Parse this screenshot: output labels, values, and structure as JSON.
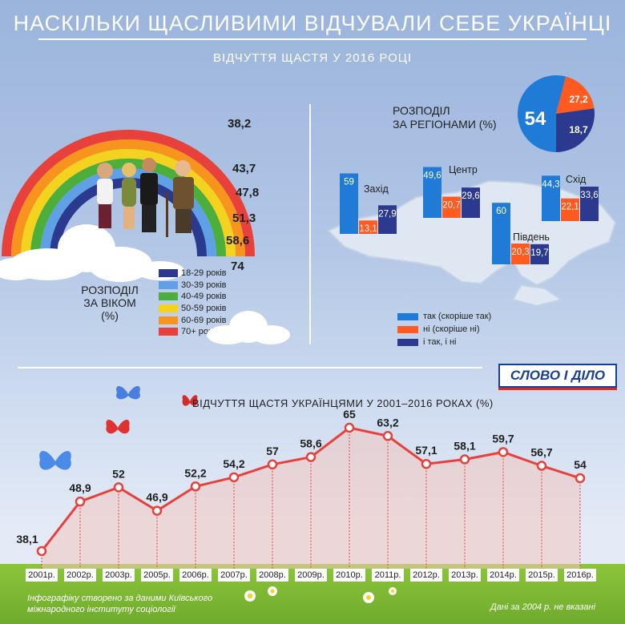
{
  "header": {
    "title": "НАСКІЛЬКИ ЩАСЛИВИМИ ВІДЧУВАЛИ СЕБЕ УКРАЇНЦІ",
    "subtitle": "ВІДЧУТТЯ ЩАСТЯ У 2016 РОЦІ"
  },
  "age_section": {
    "title_line1": "РОЗПОДІЛ",
    "title_line2": "ЗА ВІКОМ",
    "title_line3": "(%)"
  },
  "region_section": {
    "title_line1": "РОЗПОДІЛ",
    "title_line2": "ЗА РЕГІОНАМИ (%)",
    "legend": [
      "так (скоріше так)",
      "ні (скоріше ні)",
      "і так, і ні"
    ]
  },
  "logo": "СЛОВО І ДІЛО",
  "timeline_title": "ВІДЧУТТЯ ЩАСТЯ УКРАЇНЦЯМИ  У 2001–2016 РОКАХ (%)",
  "footer": {
    "credit_line1": "Інфографіку створено за даними Київського",
    "credit_line2": "міжнародного інституту соціології",
    "note": "Дані за 2004 р. не вказані"
  },
  "colors": {
    "yes": "#1f7bd6",
    "no": "#ff5a1f",
    "mixed": "#2b3a8f",
    "line": "#e8403a"
  },
  "chart_data": [
    {
      "type": "bar",
      "name": "age",
      "categories": [
        "18-29 років",
        "30-39 років",
        "40-49 років",
        "50-59 років",
        "60-69 років",
        "70+ років"
      ],
      "values": [
        74,
        58.6,
        51.3,
        47.8,
        43.7,
        38.2
      ],
      "labels": [
        "74",
        "58,6",
        "51,3",
        "47,8",
        "43,7",
        "38,2"
      ],
      "colors": [
        "#2b3a8f",
        "#5fa0e6",
        "#4caf3c",
        "#f3d320",
        "#f7941d",
        "#e8403a"
      ]
    },
    {
      "type": "pie",
      "name": "overall",
      "values": [
        54,
        18.7,
        27.2
      ],
      "labels": [
        "54",
        "18,7",
        "27,2"
      ],
      "colors": [
        "#1f7bd6",
        "#ff5a1f",
        "#2b3a8f"
      ]
    },
    {
      "type": "bar",
      "name": "regions",
      "categories": [
        "Захід",
        "Центр",
        "Схід",
        "Південь"
      ],
      "series": [
        {
          "name": "так (скоріше так)",
          "values": [
            59,
            49.6,
            44.3,
            60
          ],
          "labels": [
            "59",
            "49,6",
            "44,3",
            "60"
          ]
        },
        {
          "name": "ні (скоріше ні)",
          "values": [
            13.1,
            20.7,
            22.1,
            20.3
          ],
          "labels": [
            "13,1",
            "20,7",
            "22,1",
            "20,3"
          ]
        },
        {
          "name": "і так, і ні",
          "values": [
            27.9,
            29.6,
            33.6,
            19.7
          ],
          "labels": [
            "27,9",
            "29,6",
            "33,6",
            "19,7"
          ]
        }
      ]
    },
    {
      "type": "line",
      "name": "timeline",
      "x": [
        "2001р.",
        "2002р.",
        "2003р.",
        "2005р.",
        "2006р.",
        "2007р.",
        "2008р.",
        "2009р.",
        "2010р.",
        "2011р.",
        "2012р.",
        "2013р.",
        "2014р.",
        "2015р.",
        "2016р."
      ],
      "values": [
        38.1,
        48.9,
        52,
        46.9,
        52.2,
        54.2,
        57,
        58.6,
        65,
        63.2,
        57.1,
        58.1,
        59.7,
        56.7,
        54
      ],
      "labels": [
        "38,1",
        "48,9",
        "52",
        "46,9",
        "52,2",
        "54,2",
        "57",
        "58,6",
        "65",
        "63,2",
        "57,1",
        "58,1",
        "59,7",
        "56,7",
        "54"
      ]
    }
  ]
}
